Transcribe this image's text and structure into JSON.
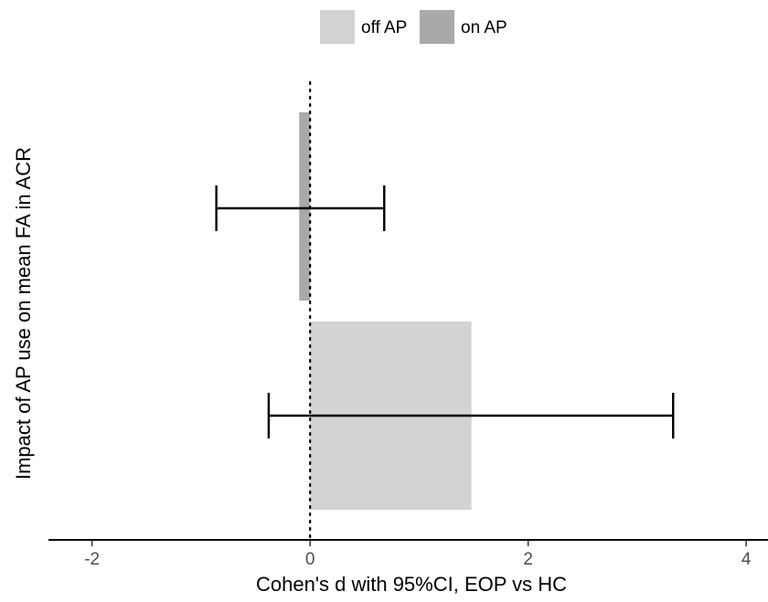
{
  "chart_data": {
    "type": "bar",
    "orientation": "horizontal",
    "xlabel": "Cohen's d with 95%CI, EOP vs HC",
    "ylabel": "Impact of AP use on mean FA in ACR",
    "xlim": [
      -2.4,
      4.2
    ],
    "xticks": [
      -2,
      0,
      2,
      4
    ],
    "xtick_labels": [
      "-2",
      "0",
      "2",
      "4"
    ],
    "reference_line": 0,
    "legend_position": "top",
    "grid": false,
    "series": [
      {
        "name": "off AP",
        "color": "#d3d3d3",
        "value": 1.48,
        "ci_low": -0.38,
        "ci_high": 3.33
      },
      {
        "name": "on AP",
        "color": "#a9a9a9",
        "value": -0.1,
        "ci_low": -0.86,
        "ci_high": 0.68
      }
    ]
  }
}
